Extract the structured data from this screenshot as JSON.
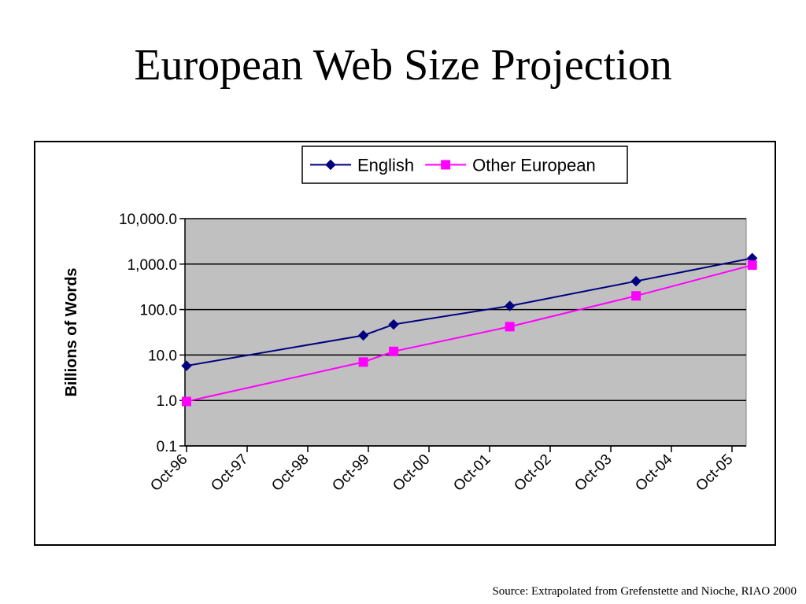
{
  "slide": {
    "title": "European Web Size Projection",
    "source": "Source: Extrapolated from Grefenstette and Nioche, RIAO 2000"
  },
  "chart_data": {
    "type": "line",
    "title": "",
    "xlabel": "",
    "ylabel": "Billions of Words",
    "yscale": "log",
    "ylim": [
      0.1,
      10000
    ],
    "y_ticks": [
      "10,000.0",
      "1,000.0",
      "100.0",
      "10.0",
      "1.0",
      "0.1"
    ],
    "x_tick_labels": [
      "Oct-96",
      "Oct-97",
      "Oct-98",
      "Oct-99",
      "Oct-00",
      "Oct-01",
      "Oct-02",
      "Oct-03",
      "Oct-04",
      "Oct-05"
    ],
    "grid": true,
    "legend_position": "top",
    "background": "#c0c0c0",
    "series": [
      {
        "name": "English",
        "color": "#000080",
        "marker": "diamond",
        "x": [
          "Oct-96",
          "Sep-99",
          "Mar-00",
          "Feb-02",
          "Mar-04",
          "Feb-06"
        ],
        "values": [
          5.8,
          27,
          47,
          120,
          420,
          1350
        ]
      },
      {
        "name": "Other European",
        "color": "#ff00ff",
        "marker": "square",
        "x": [
          "Oct-96",
          "Sep-99",
          "Mar-00",
          "Feb-02",
          "Mar-04",
          "Feb-06"
        ],
        "values": [
          0.95,
          7,
          12,
          42,
          200,
          950
        ]
      }
    ]
  }
}
